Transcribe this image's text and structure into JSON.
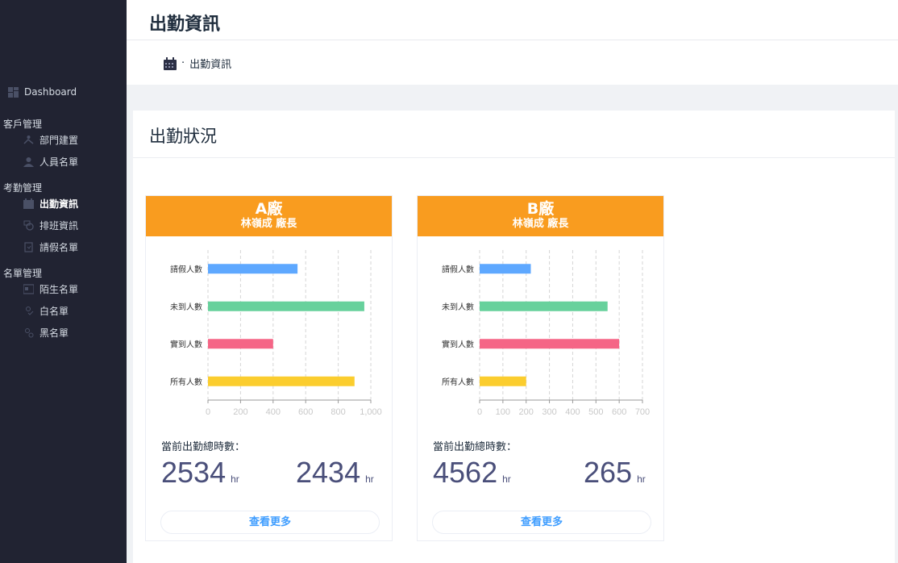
{
  "sidebar": {
    "dashboard": "Dashboard",
    "groups": [
      {
        "label": "客戶管理",
        "items": [
          {
            "label": "部門建置",
            "icon": "org-icon"
          },
          {
            "label": "人員名單",
            "icon": "user-icon"
          }
        ]
      },
      {
        "label": "考勤管理",
        "items": [
          {
            "label": "出勤資訊",
            "icon": "calendar-icon"
          },
          {
            "label": "排班資訊",
            "icon": "clock-icon"
          },
          {
            "label": "請假名單",
            "icon": "leave-icon"
          }
        ]
      },
      {
        "label": "名單管理",
        "items": [
          {
            "label": "陌生名單",
            "icon": "id-card-icon"
          },
          {
            "label": "白名單",
            "icon": "check-user-icon"
          },
          {
            "label": "黑名單",
            "icon": "block-user-icon"
          }
        ]
      }
    ]
  },
  "header": {
    "title": "出勤資訊"
  },
  "breadcrumb": {
    "sep": "·",
    "label": "出勤資訊"
  },
  "panel": {
    "title": "出勤狀況"
  },
  "colors": {
    "sidebar": "#212332",
    "card_header": "#f99c1f",
    "leave": "#5ea8ff",
    "absent": "#67d19c",
    "present": "#f56586",
    "total": "#fbcd2e"
  },
  "cards": [
    {
      "name": "A廠",
      "manager": "林嶺成 廠長",
      "hours_label": "當前出勤總時數：",
      "hours_a": "2534",
      "hours_b": "2434",
      "unit": "hr",
      "more": "查看更多"
    },
    {
      "name": "B廠",
      "manager": "林嶺成 廠長",
      "hours_label": "當前出勤總時數：",
      "hours_a": "4562",
      "hours_b": "265",
      "unit": "hr",
      "more": "查看更多"
    }
  ],
  "chart_data": [
    {
      "type": "bar",
      "orientation": "horizontal",
      "categories": [
        "請假人數",
        "未到人數",
        "實到人數",
        "所有人數"
      ],
      "values": [
        550,
        960,
        400,
        900
      ],
      "xlim": [
        0,
        1000
      ],
      "xticks": [
        "0",
        "200",
        "400",
        "600",
        "800",
        "1,000"
      ],
      "grid": true
    },
    {
      "type": "bar",
      "orientation": "horizontal",
      "categories": [
        "請假人數",
        "未到人數",
        "實到人數",
        "所有人數"
      ],
      "values": [
        220,
        550,
        600,
        200
      ],
      "xlim": [
        0,
        700
      ],
      "xticks": [
        "0",
        "100",
        "200",
        "300",
        "400",
        "500",
        "600",
        "700"
      ],
      "grid": true
    }
  ]
}
